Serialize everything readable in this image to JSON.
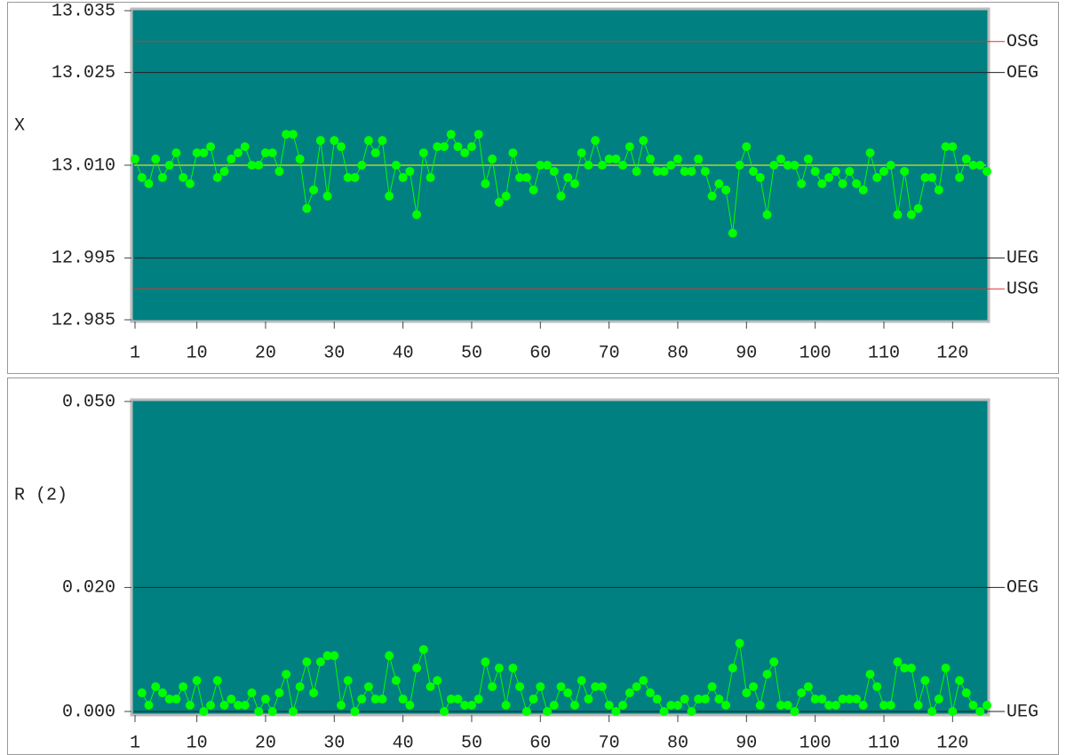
{
  "chart_data": [
    {
      "type": "line",
      "y_label": "X",
      "x": [
        1,
        2,
        3,
        4,
        5,
        6,
        7,
        8,
        9,
        10,
        11,
        12,
        13,
        14,
        15,
        16,
        17,
        18,
        19,
        20,
        21,
        22,
        23,
        24,
        25,
        26,
        27,
        28,
        29,
        30,
        31,
        32,
        33,
        34,
        35,
        36,
        37,
        38,
        39,
        40,
        41,
        42,
        43,
        44,
        45,
        46,
        47,
        48,
        49,
        50,
        51,
        52,
        53,
        54,
        55,
        56,
        57,
        58,
        59,
        60,
        61,
        62,
        63,
        64,
        65,
        66,
        67,
        68,
        69,
        70,
        71,
        72,
        73,
        74,
        75,
        76,
        77,
        78,
        79,
        80,
        81,
        82,
        83,
        84,
        85,
        86,
        87,
        88,
        89,
        90,
        91,
        92,
        93,
        94,
        95,
        96,
        97,
        98,
        99,
        100,
        101,
        102,
        103,
        104,
        105,
        106,
        107,
        108,
        109,
        110,
        111,
        112,
        113,
        114,
        115,
        116,
        117,
        118,
        119,
        120,
        121,
        122,
        123,
        124,
        125
      ],
      "values": [
        13.011,
        13.008,
        13.007,
        13.011,
        13.008,
        13.01,
        13.012,
        13.008,
        13.007,
        13.012,
        13.012,
        13.013,
        13.008,
        13.009,
        13.011,
        13.012,
        13.013,
        13.01,
        13.01,
        13.012,
        13.012,
        13.009,
        13.015,
        13.015,
        13.011,
        13.003,
        13.006,
        13.014,
        13.005,
        13.014,
        13.013,
        13.008,
        13.008,
        13.01,
        13.014,
        13.012,
        13.014,
        13.005,
        13.01,
        13.008,
        13.009,
        13.002,
        13.012,
        13.008,
        13.013,
        13.013,
        13.015,
        13.013,
        13.012,
        13.013,
        13.015,
        13.007,
        13.011,
        13.004,
        13.005,
        13.012,
        13.008,
        13.008,
        13.006,
        13.01,
        13.01,
        13.009,
        13.005,
        13.008,
        13.007,
        13.012,
        13.01,
        13.014,
        13.01,
        13.011,
        13.011,
        13.01,
        13.013,
        13.009,
        13.014,
        13.011,
        13.009,
        13.009,
        13.01,
        13.011,
        13.009,
        13.009,
        13.011,
        13.009,
        13.005,
        13.007,
        13.006,
        12.999,
        13.01,
        13.013,
        13.009,
        13.008,
        13.002,
        13.01,
        13.011,
        13.01,
        13.01,
        13.007,
        13.011,
        13.009,
        13.007,
        13.008,
        13.009,
        13.007,
        13.009,
        13.007,
        13.006,
        13.012,
        13.008,
        13.009,
        13.01,
        13.002,
        13.009,
        13.002,
        13.003,
        13.008,
        13.008,
        13.006,
        13.013,
        13.013,
        13.008,
        13.011,
        13.01,
        13.01,
        13.009
      ],
      "color": "#00ff00",
      "xlim": [
        1,
        125
      ],
      "xticks": [
        1,
        10,
        20,
        30,
        40,
        50,
        60,
        70,
        80,
        90,
        100,
        110,
        120
      ],
      "ylim": [
        12.985,
        13.035
      ],
      "yticks": [
        12.985,
        12.995,
        {
          "value": 13.01,
          "label": "13.010"
        },
        13.025,
        13.035
      ],
      "limits": [
        {
          "label": "OSG",
          "value": 13.03,
          "color": "#e03030"
        },
        {
          "label": "OEG",
          "value": 13.025,
          "color": "#222222"
        },
        {
          "value": 13.01,
          "color": "#ffff00"
        },
        {
          "label": "UEG",
          "value": 12.995,
          "color": "#222222"
        },
        {
          "label": "USG",
          "value": 12.99,
          "color": "#e03030"
        }
      ]
    },
    {
      "type": "line",
      "y_label": "R (2)",
      "x": [
        2,
        3,
        4,
        5,
        6,
        7,
        8,
        9,
        10,
        11,
        12,
        13,
        14,
        15,
        16,
        17,
        18,
        19,
        20,
        21,
        22,
        23,
        24,
        25,
        26,
        27,
        28,
        29,
        30,
        31,
        32,
        33,
        34,
        35,
        36,
        37,
        38,
        39,
        40,
        41,
        42,
        43,
        44,
        45,
        46,
        47,
        48,
        49,
        50,
        51,
        52,
        53,
        54,
        55,
        56,
        57,
        58,
        59,
        60,
        61,
        62,
        63,
        64,
        65,
        66,
        67,
        68,
        69,
        70,
        71,
        72,
        73,
        74,
        75,
        76,
        77,
        78,
        79,
        80,
        81,
        82,
        83,
        84,
        85,
        86,
        87,
        88,
        89,
        90,
        91,
        92,
        93,
        94,
        95,
        96,
        97,
        98,
        99,
        100,
        101,
        102,
        103,
        104,
        105,
        106,
        107,
        108,
        109,
        110,
        111,
        112,
        113,
        114,
        115,
        116,
        117,
        118,
        119,
        120,
        121,
        122,
        123,
        124,
        125
      ],
      "values": [
        0.003,
        0.001,
        0.004,
        0.003,
        0.002,
        0.002,
        0.004,
        0.001,
        0.005,
        0,
        0.001,
        0.005,
        0.001,
        0.002,
        0.001,
        0.001,
        0.003,
        0,
        0.002,
        0,
        0.003,
        0.006,
        0,
        0.004,
        0.008,
        0.003,
        0.008,
        0.009,
        0.009,
        0.001,
        0.005,
        0,
        0.002,
        0.004,
        0.002,
        0.002,
        0.009,
        0.005,
        0.002,
        0.001,
        0.007,
        0.01,
        0.004,
        0.005,
        0,
        0.002,
        0.002,
        0.001,
        0.001,
        0.002,
        0.008,
        0.004,
        0.007,
        0.001,
        0.007,
        0.004,
        0,
        0.002,
        0.004,
        0,
        0.001,
        0.004,
        0.003,
        0.001,
        0.005,
        0.002,
        0.004,
        0.004,
        0.001,
        0,
        0.001,
        0.003,
        0.004,
        0.005,
        0.003,
        0.002,
        0,
        0.001,
        0.001,
        0.002,
        0,
        0.002,
        0.002,
        0.004,
        0.002,
        0.001,
        0.007,
        0.011,
        0.003,
        0.004,
        0.001,
        0.006,
        0.008,
        0.001,
        0.001,
        0,
        0.003,
        0.004,
        0.002,
        0.002,
        0.001,
        0.001,
        0.002,
        0.002,
        0.002,
        0.001,
        0.006,
        0.004,
        0.001,
        0.001,
        0.008,
        0.007,
        0.007,
        0.001,
        0.005,
        0,
        0.002,
        0.007,
        0,
        0.005,
        0.003,
        0.001,
        0,
        0.001
      ],
      "color": "#00ff00",
      "xlim": [
        1,
        125
      ],
      "xticks": [
        1,
        10,
        20,
        30,
        40,
        50,
        60,
        70,
        80,
        90,
        100,
        110,
        120
      ],
      "ylim": [
        0,
        0.05
      ],
      "yticks": [
        {
          "value": 0,
          "label": "0.000"
        },
        {
          "value": 0.02,
          "label": "0.020"
        },
        {
          "value": 0.05,
          "label": "0.050"
        }
      ],
      "limits": [
        {
          "label": "OEG",
          "value": 0.02,
          "color": "#222222"
        },
        {
          "label": "UEG",
          "value": 0,
          "color": "#222222"
        }
      ]
    }
  ]
}
